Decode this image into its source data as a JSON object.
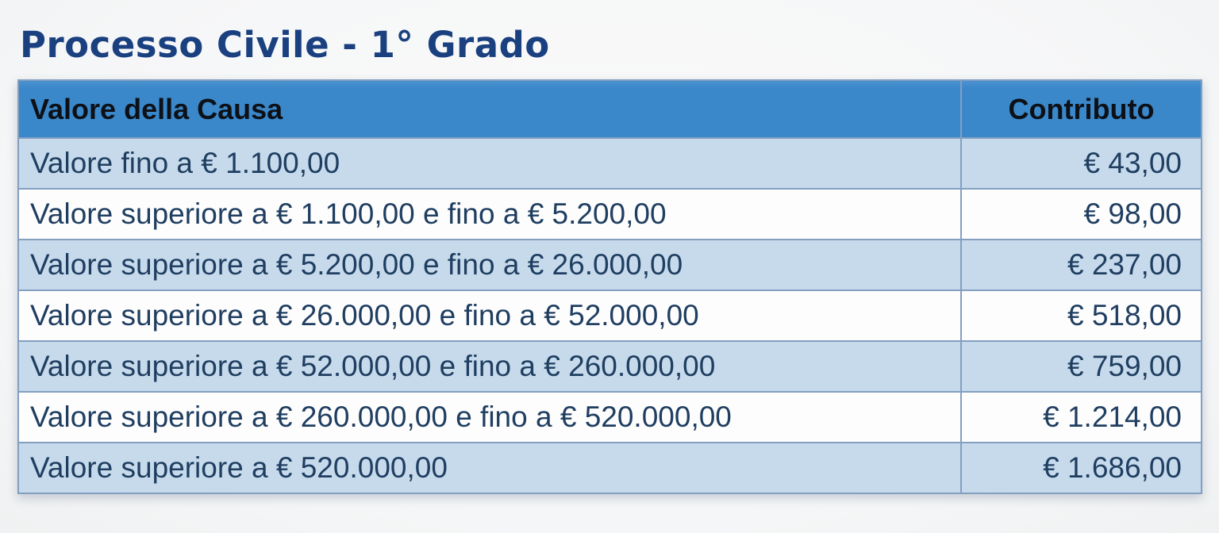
{
  "page": {
    "title": "Processo Civile - 1° Grado"
  },
  "table": {
    "columns": [
      {
        "label": "Valore della Causa"
      },
      {
        "label": "Contributo"
      }
    ],
    "rows": [
      {
        "label": "Valore fino a € 1.100,00",
        "amount": "€ 43,00"
      },
      {
        "label": "Valore superiore a € 1.100,00 e fino a € 5.200,00",
        "amount": "€ 98,00"
      },
      {
        "label": "Valore superiore a € 5.200,00 e fino a € 26.000,00",
        "amount": "€ 237,00"
      },
      {
        "label": "Valore superiore a € 26.000,00 e fino a € 52.000,00",
        "amount": "€ 518,00"
      },
      {
        "label": "Valore superiore a € 52.000,00 e fino a € 260.000,00",
        "amount": "€ 759,00"
      },
      {
        "label": "Valore superiore a € 260.000,00 e fino a € 520.000,00",
        "amount": "€ 1.214,00"
      },
      {
        "label": "Valore superiore a € 520.000,00",
        "amount": "€ 1.686,00"
      }
    ]
  },
  "colors": {
    "background": "#f7f8f8",
    "title_text": "#1a4080",
    "header_background": "#3a87c9",
    "header_text": "#0d1117",
    "row_light_blue": "#c6daec",
    "row_white": "#fdfdfe",
    "border": "#839fc0",
    "body_text": "#1f3e60"
  },
  "chart_data": {
    "type": "table",
    "title": "Processo Civile - 1° Grado",
    "columns": [
      "Valore della Causa",
      "Contributo"
    ],
    "rows": [
      [
        "Valore fino a € 1.100,00",
        "€ 43,00"
      ],
      [
        "Valore superiore a € 1.100,00 e fino a € 5.200,00",
        "€ 98,00"
      ],
      [
        "Valore superiore a € 5.200,00 e fino a € 26.000,00",
        "€ 237,00"
      ],
      [
        "Valore superiore a € 26.000,00 e fino a € 52.000,00",
        "€ 518,00"
      ],
      [
        "Valore superiore a € 52.000,00 e fino a € 260.000,00",
        "€ 759,00"
      ],
      [
        "Valore superiore a € 260.000,00 e fino a € 520.000,00",
        "€ 1.214,00"
      ],
      [
        "Valore superiore a € 520.000,00",
        "€ 1.686,00"
      ]
    ],
    "contributo_values_eur": [
      43.0,
      98.0,
      237.0,
      518.0,
      759.0,
      1214.0,
      1686.0
    ]
  }
}
